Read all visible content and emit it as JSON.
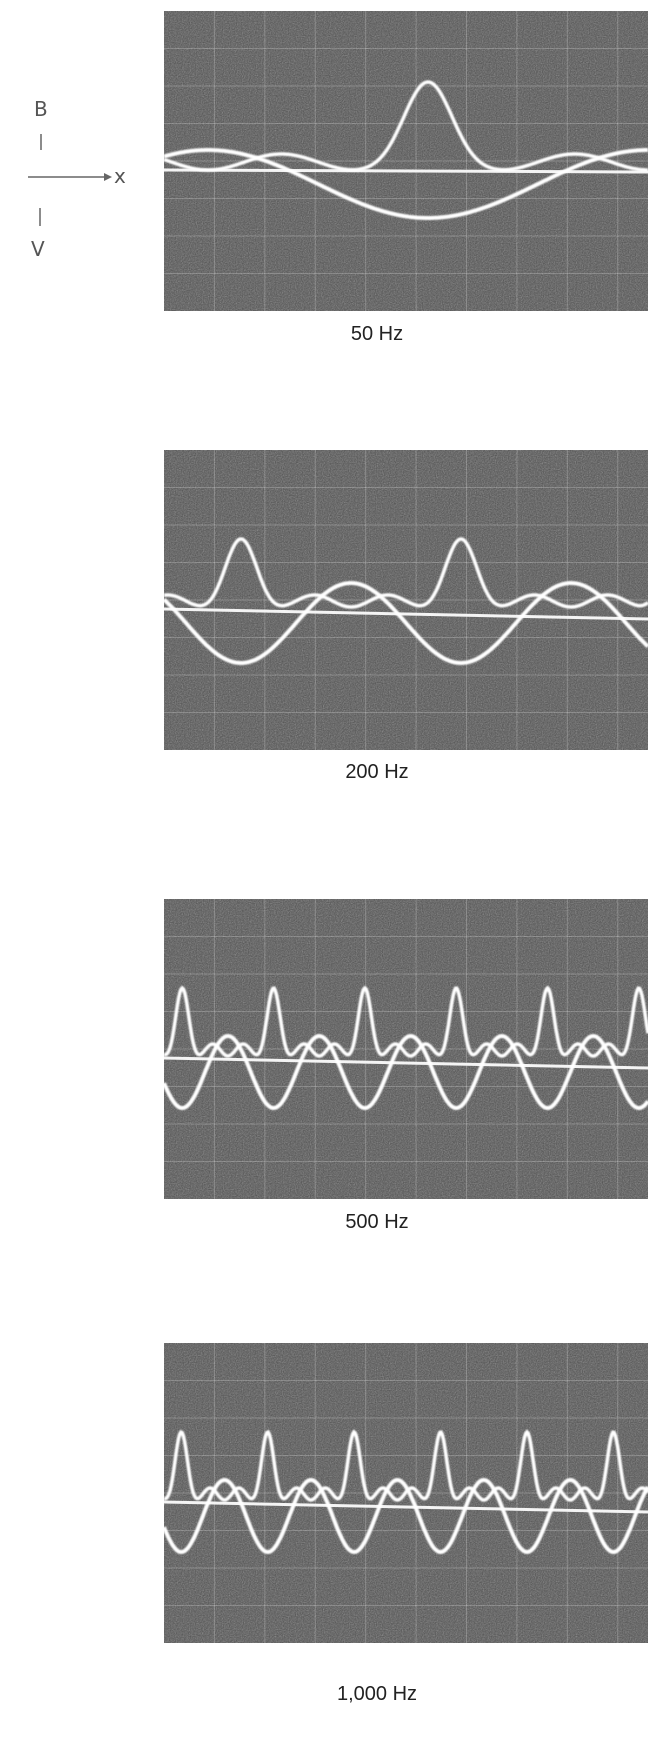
{
  "axes_legend": {
    "b": "B",
    "x": "x",
    "v": "V"
  },
  "panels": [
    {
      "caption": "50 Hz"
    },
    {
      "caption": "200 Hz"
    },
    {
      "caption": "500 Hz"
    },
    {
      "caption": "1,000 Hz"
    }
  ]
}
